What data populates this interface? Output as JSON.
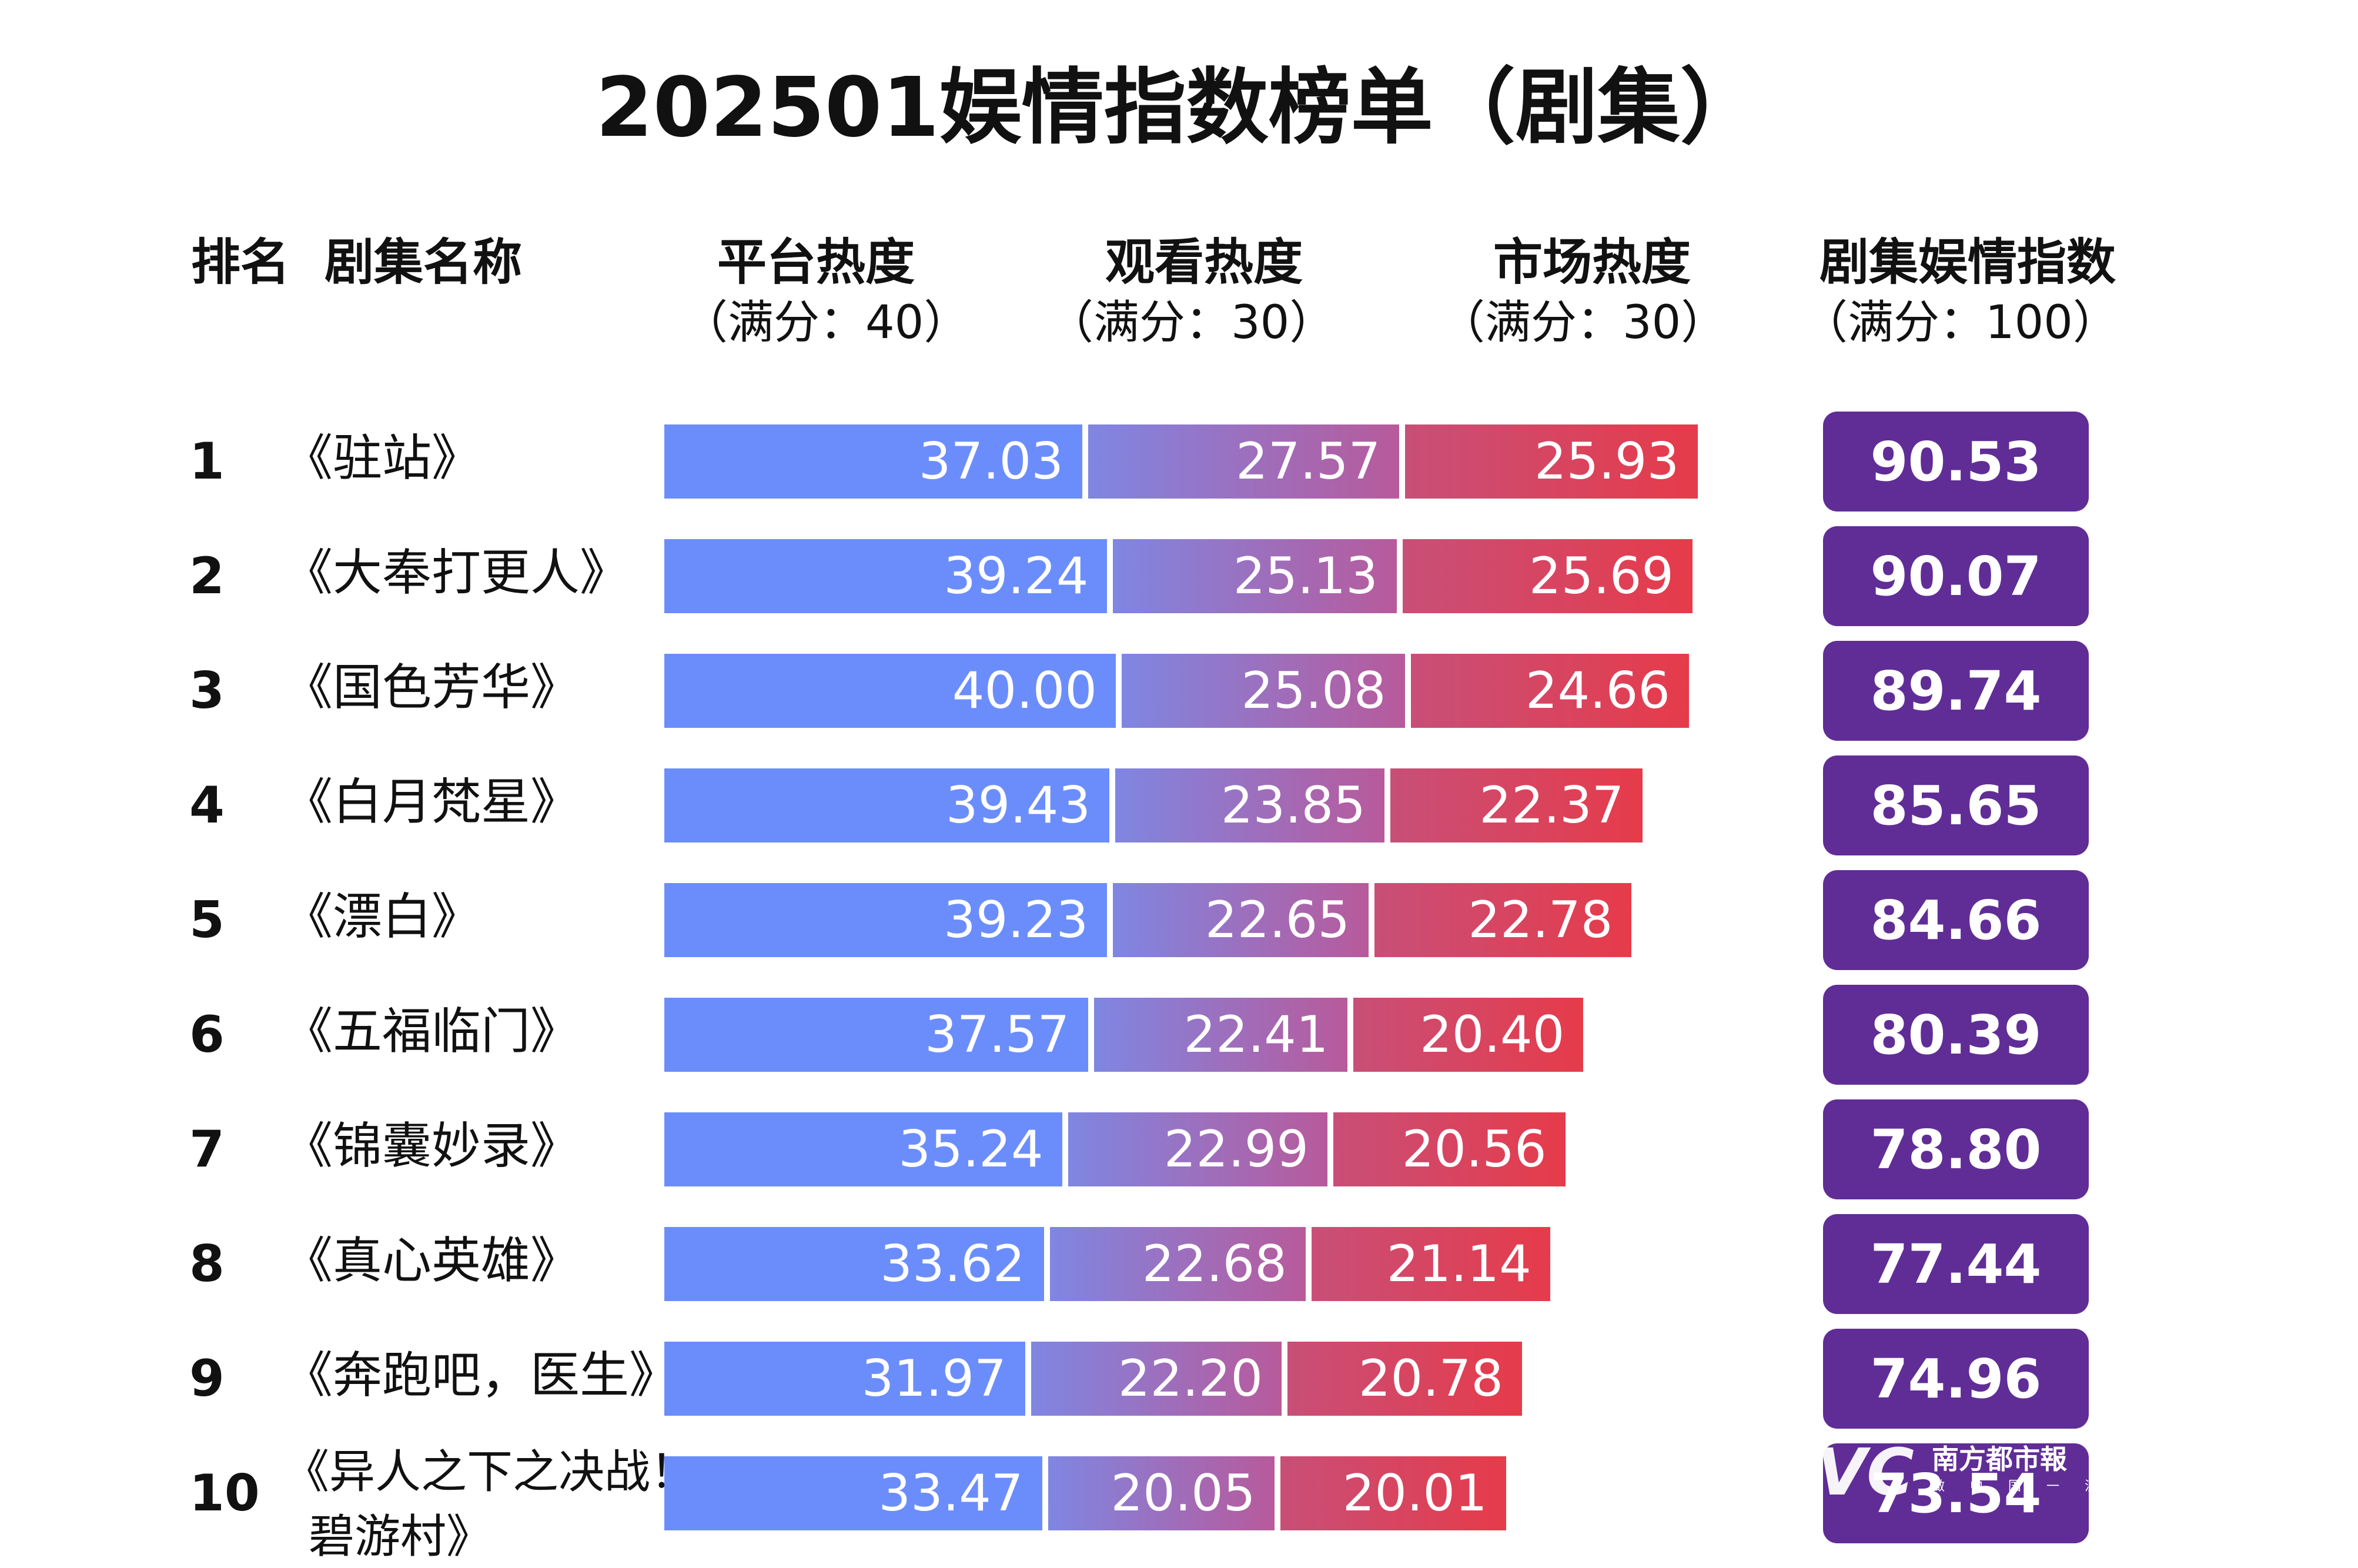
{
  "title": "202501娱情指数榜单（剧集）",
  "headers": {
    "rank": "排名",
    "name": "剧集名称",
    "platform": "平台热度",
    "platform_max": "（满分：40）",
    "watch": "观看热度",
    "watch_max": "（满分：30）",
    "market": "市场热度",
    "market_max": "（满分：30）",
    "index": "剧集娱情指数",
    "index_max": "（满分：100）"
  },
  "colors": {
    "platform": "#6b8dfc",
    "watch_start": "#7f86e2",
    "watch_end": "#b85a9b",
    "market_start": "#c84f78",
    "market_end": "#e63b4a",
    "badge": "#602d96"
  },
  "watermark": {
    "logo": "VC",
    "paper": "南方都市報",
    "slogan": "做 中 国 一 流 智 媒"
  },
  "chart_data": {
    "type": "bar",
    "title": "202501娱情指数榜单（剧集）",
    "stacked": true,
    "orientation": "horizontal",
    "series_max": [
      40,
      30,
      30
    ],
    "categories": [
      "《驻站》",
      "《大奉打更人》",
      "《国色芳华》",
      "《白月梵星》",
      "《漂白》",
      "《五福临门》",
      "《锦囊妙录》",
      "《真心英雄》",
      "《奔跑吧，医生》",
      "《异人之下之决战！碧游村》"
    ],
    "name_lines": [
      [
        "《驻站》"
      ],
      [
        "《大奉打更人》"
      ],
      [
        "《国色芳华》"
      ],
      [
        "《白月梵星》"
      ],
      [
        "《漂白》"
      ],
      [
        "《五福临门》"
      ],
      [
        "《锦囊妙录》"
      ],
      [
        "《真心英雄》"
      ],
      [
        "《奔跑吧，医生》"
      ],
      [
        "《异人之下之决战！",
        "碧游村》"
      ]
    ],
    "ranks": [
      "1",
      "2",
      "3",
      "4",
      "5",
      "6",
      "7",
      "8",
      "9",
      "10"
    ],
    "series": [
      {
        "name": "平台热度",
        "values": [
          "37.03",
          "39.24",
          "40.00",
          "39.43",
          "39.23",
          "37.57",
          "35.24",
          "33.62",
          "31.97",
          "33.47"
        ]
      },
      {
        "name": "观看热度",
        "values": [
          "27.57",
          "25.13",
          "25.08",
          "23.85",
          "22.65",
          "22.41",
          "22.99",
          "22.68",
          "22.20",
          "20.05"
        ]
      },
      {
        "name": "市场热度",
        "values": [
          "25.93",
          "25.69",
          "24.66",
          "22.37",
          "22.78",
          "20.40",
          "20.56",
          "21.14",
          "20.78",
          "20.01"
        ]
      }
    ],
    "index": [
      "90.53",
      "90.07",
      "89.74",
      "85.65",
      "84.66",
      "80.39",
      "78.80",
      "77.44",
      "74.96",
      "73.54"
    ]
  }
}
